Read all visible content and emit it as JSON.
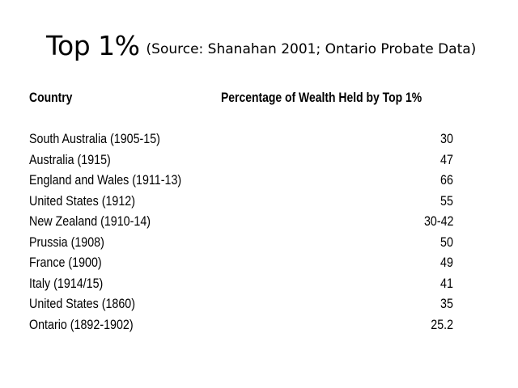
{
  "slide": {
    "title_main": "Top 1%",
    "title_source": "(Source: Shanahan 2001; Ontario Probate Data)",
    "table": {
      "headers": {
        "country": "Country",
        "percentage": "Percentage of Wealth Held by Top 1%"
      },
      "rows": [
        {
          "country": "South Australia (1905-15)",
          "value": "30"
        },
        {
          "country": "Australia (1915)",
          "value": "47"
        },
        {
          "country": "England and Wales (1911-13)",
          "value": "66"
        },
        {
          "country": "United States (1912)",
          "value": "55"
        },
        {
          "country": "New Zealand (1910-14)",
          "value": "30-42"
        },
        {
          "country": "Prussia (1908)",
          "value": "50"
        },
        {
          "country": "France (1900)",
          "value": "49"
        },
        {
          "country": "Italy (1914/15)",
          "value": "41"
        },
        {
          "country": "United States (1860)",
          "value": "35"
        },
        {
          "country": "Ontario (1892-1902)",
          "value": "25.2"
        }
      ]
    }
  }
}
